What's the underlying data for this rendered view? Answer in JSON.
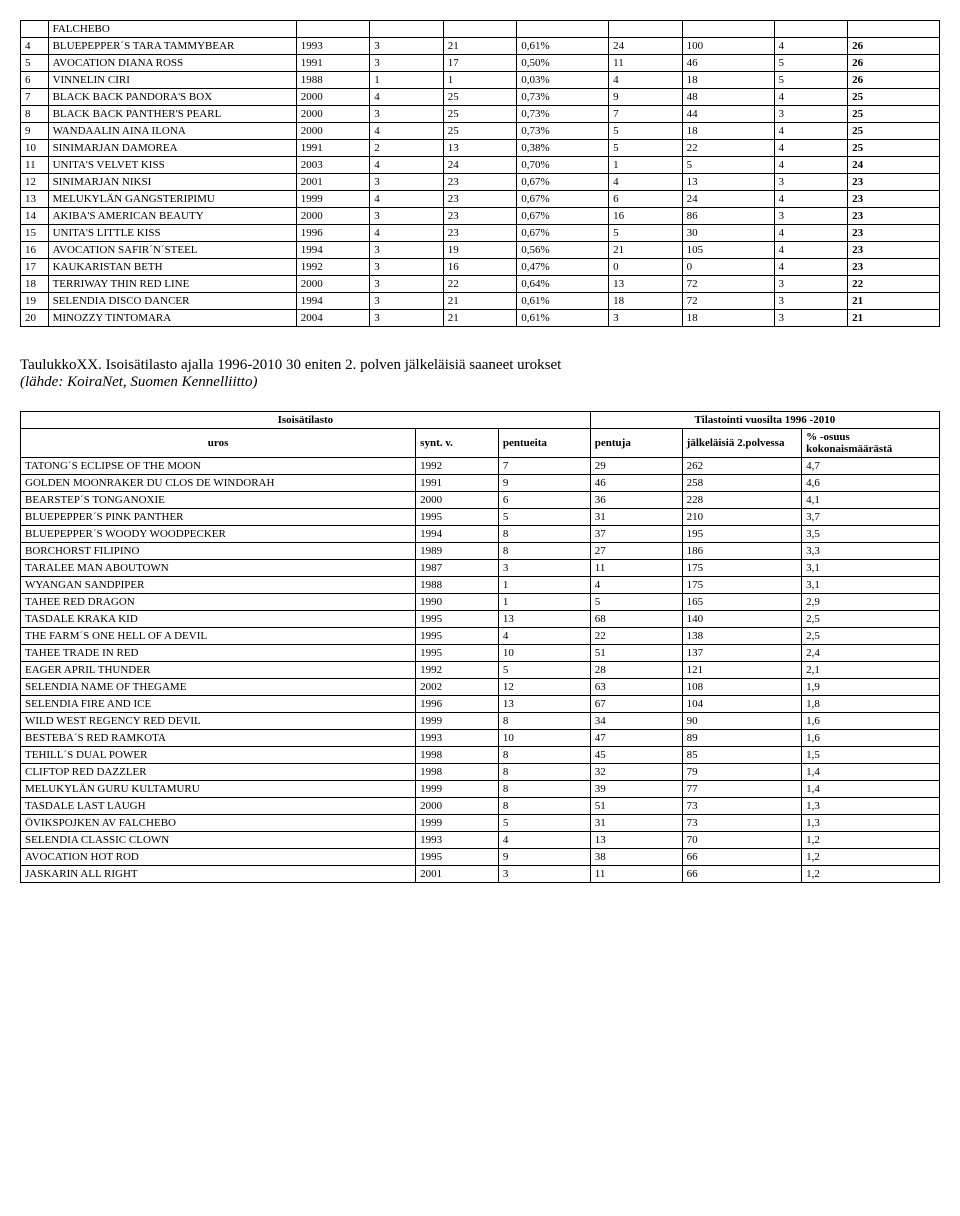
{
  "table1": {
    "rows": [
      {
        "n": "",
        "name": "FALCHEBO",
        "c1": "",
        "c2": "",
        "c3": "",
        "c4": "",
        "c5": "",
        "c6": "",
        "c7": "",
        "c8": ""
      },
      {
        "n": "4",
        "name": "BLUEPEPPER´S TARA TAMMYBEAR",
        "c1": "1993",
        "c2": "3",
        "c3": "21",
        "c4": "0,61%",
        "c5": "24",
        "c6": "100",
        "c7": "4",
        "c8": "26"
      },
      {
        "n": "5",
        "name": "AVOCATION DIANA ROSS",
        "c1": "1991",
        "c2": "3",
        "c3": "17",
        "c4": "0,50%",
        "c5": "11",
        "c6": "46",
        "c7": "5",
        "c8": "26"
      },
      {
        "n": "6",
        "name": "VINNELIN CIRI",
        "c1": "1988",
        "c2": "1",
        "c3": "1",
        "c4": "0,03%",
        "c5": "4",
        "c6": "18",
        "c7": "5",
        "c8": "26"
      },
      {
        "n": "7",
        "name": "BLACK BACK PANDORA'S BOX",
        "c1": "2000",
        "c2": "4",
        "c3": "25",
        "c4": "0,73%",
        "c5": "9",
        "c6": "48",
        "c7": "4",
        "c8": "25"
      },
      {
        "n": "8",
        "name": "BLACK BACK PANTHER'S PEARL",
        "c1": "2000",
        "c2": "3",
        "c3": "25",
        "c4": "0,73%",
        "c5": "7",
        "c6": "44",
        "c7": "3",
        "c8": "25"
      },
      {
        "n": "9",
        "name": "WANDAALIN AINA ILONA",
        "c1": "2000",
        "c2": "4",
        "c3": "25",
        "c4": "0,73%",
        "c5": "5",
        "c6": "18",
        "c7": "4",
        "c8": "25"
      },
      {
        "n": "10",
        "name": "SINIMARJAN DAMOREA",
        "c1": "1991",
        "c2": "2",
        "c3": "13",
        "c4": "0,38%",
        "c5": "5",
        "c6": "22",
        "c7": "4",
        "c8": "25"
      },
      {
        "n": "11",
        "name": "UNITA'S VELVET KISS",
        "c1": "2003",
        "c2": "4",
        "c3": "24",
        "c4": "0,70%",
        "c5": "1",
        "c6": "5",
        "c7": "4",
        "c8": "24"
      },
      {
        "n": "12",
        "name": "SINIMARJAN NIKSI",
        "c1": "2001",
        "c2": "3",
        "c3": "23",
        "c4": "0,67%",
        "c5": "4",
        "c6": "13",
        "c7": "3",
        "c8": "23"
      },
      {
        "n": "13",
        "name": "MELUKYLÄN GANGSTERIPIMU",
        "c1": "1999",
        "c2": "4",
        "c3": "23",
        "c4": "0,67%",
        "c5": "6",
        "c6": "24",
        "c7": "4",
        "c8": "23"
      },
      {
        "n": "14",
        "name": "AKIBA'S AMERICAN BEAUTY",
        "c1": "2000",
        "c2": "3",
        "c3": "23",
        "c4": "0,67%",
        "c5": "16",
        "c6": "86",
        "c7": "3",
        "c8": "23"
      },
      {
        "n": "15",
        "name": "UNITA'S LITTLE KISS",
        "c1": "1996",
        "c2": "4",
        "c3": "23",
        "c4": "0,67%",
        "c5": "5",
        "c6": "30",
        "c7": "4",
        "c8": "23"
      },
      {
        "n": "16",
        "name": "AVOCATION SAFIR´N´STEEL",
        "c1": "1994",
        "c2": "3",
        "c3": "19",
        "c4": "0,56%",
        "c5": "21",
        "c6": "105",
        "c7": "4",
        "c8": "23"
      },
      {
        "n": "17",
        "name": "KAUKARISTAN BETH",
        "c1": "1992",
        "c2": "3",
        "c3": "16",
        "c4": "0,47%",
        "c5": "0",
        "c6": "0",
        "c7": "4",
        "c8": "23"
      },
      {
        "n": "18",
        "name": "TERRIWAY THIN RED LINE",
        "c1": "2000",
        "c2": "3",
        "c3": "22",
        "c4": "0,64%",
        "c5": "13",
        "c6": "72",
        "c7": "3",
        "c8": "22"
      },
      {
        "n": "19",
        "name": "SELENDIA DISCO DANCER",
        "c1": "1994",
        "c2": "3",
        "c3": "21",
        "c4": "0,61%",
        "c5": "18",
        "c6": "72",
        "c7": "3",
        "c8": "21"
      },
      {
        "n": "20",
        "name": "MINOZZY TINTOMARA",
        "c1": "2004",
        "c2": "3",
        "c3": "21",
        "c4": "0,61%",
        "c5": "3",
        "c6": "18",
        "c7": "3",
        "c8": "21"
      }
    ]
  },
  "caption": {
    "line1": "TaulukkoXX. Isoisätilasto ajalla 1996-2010 30 eniten 2. polven jälkeläisiä saaneet urokset",
    "line2": "(lähde: KoiraNet, Suomen Kennelliitto)"
  },
  "table2": {
    "header_main_left": "Isoisätilasto",
    "header_main_right": "Tilastointi vuosilta 1996 -2010",
    "cols": [
      "uros",
      "synt. v.",
      "pentueita",
      "pentuja",
      "jälkeläisiä 2.polvessa",
      "% -osuus kokonaismäärästä"
    ],
    "rows": [
      {
        "name": "TATONG´S ECLIPSE OF THE MOON",
        "y": "1992",
        "p": "7",
        "pu": "29",
        "j": "262",
        "pc": "4,7"
      },
      {
        "name": "GOLDEN MOONRAKER DU CLOS DE WINDORAH",
        "y": "1991",
        "p": "9",
        "pu": "46",
        "j": "258",
        "pc": "4,6"
      },
      {
        "name": "BEARSTEP´S TONGANOXIE",
        "y": "2000",
        "p": "6",
        "pu": "36",
        "j": "228",
        "pc": "4,1"
      },
      {
        "name": "BLUEPEPPER´S PINK PANTHER",
        "y": "1995",
        "p": "5",
        "pu": "31",
        "j": "210",
        "pc": "3,7"
      },
      {
        "name": "BLUEPEPPER´S WOODY WOODPECKER",
        "y": "1994",
        "p": "8",
        "pu": "37",
        "j": "195",
        "pc": "3,5"
      },
      {
        "name": "BORCHORST FILIPINO",
        "y": "1989",
        "p": "8",
        "pu": "27",
        "j": "186",
        "pc": "3,3"
      },
      {
        "name": "TARALEE MAN ABOUTOWN",
        "y": "1987",
        "p": "3",
        "pu": "11",
        "j": "175",
        "pc": "3,1"
      },
      {
        "name": "WYANGAN SANDPIPER",
        "y": "1988",
        "p": "1",
        "pu": "4",
        "j": "175",
        "pc": "3,1"
      },
      {
        "name": "TAHEE RED DRAGON",
        "y": "1990",
        "p": "1",
        "pu": "5",
        "j": "165",
        "pc": "2,9"
      },
      {
        "name": "TASDALE KRAKA KID",
        "y": "1995",
        "p": "13",
        "pu": "68",
        "j": "140",
        "pc": "2,5"
      },
      {
        "name": "THE FARM´S ONE HELL OF A DEVIL",
        "y": "1995",
        "p": "4",
        "pu": "22",
        "j": "138",
        "pc": "2,5"
      },
      {
        "name": "TAHEE TRADE IN RED",
        "y": "1995",
        "p": "10",
        "pu": "51",
        "j": "137",
        "pc": "2,4"
      },
      {
        "name": "EAGER APRIL THUNDER",
        "y": "1992",
        "p": "5",
        "pu": "28",
        "j": "121",
        "pc": "2,1"
      },
      {
        "name": "SELENDIA NAME OF THEGAME",
        "y": "2002",
        "p": "12",
        "pu": "63",
        "j": "108",
        "pc": "1,9"
      },
      {
        "name": "SELENDIA FIRE AND ICE",
        "y": "1996",
        "p": "13",
        "pu": "67",
        "j": "104",
        "pc": "1,8"
      },
      {
        "name": "WILD WEST REGENCY RED DEVIL",
        "y": "1999",
        "p": "8",
        "pu": "34",
        "j": "90",
        "pc": "1,6"
      },
      {
        "name": "BESTEBA´S RED RAMKOTA",
        "y": "1993",
        "p": "10",
        "pu": "47",
        "j": "89",
        "pc": "1,6"
      },
      {
        "name": "TEHILL´S DUAL POWER",
        "y": "1998",
        "p": "8",
        "pu": "45",
        "j": "85",
        "pc": "1,5"
      },
      {
        "name": "CLIFTOP RED DAZZLER",
        "y": "1998",
        "p": "8",
        "pu": "32",
        "j": "79",
        "pc": "1,4"
      },
      {
        "name": "MELUKYLÄN GURU KULTAMURU",
        "y": "1999",
        "p": "8",
        "pu": "39",
        "j": "77",
        "pc": "1,4"
      },
      {
        "name": "TASDALE LAST LAUGH",
        "y": "2000",
        "p": "8",
        "pu": "51",
        "j": "73",
        "pc": "1,3"
      },
      {
        "name": "ÖVIKSPOJKEN AV FALCHEBO",
        "y": "1999",
        "p": "5",
        "pu": "31",
        "j": "73",
        "pc": "1,3"
      },
      {
        "name": "SELENDIA CLASSIC CLOWN",
        "y": "1993",
        "p": "4",
        "pu": "13",
        "j": "70",
        "pc": "1,2"
      },
      {
        "name": "AVOCATION HOT ROD",
        "y": "1995",
        "p": "9",
        "pu": "38",
        "j": "66",
        "pc": "1,2"
      },
      {
        "name": "JASKARIN ALL RIGHT",
        "y": "2001",
        "p": "3",
        "pu": "11",
        "j": "66",
        "pc": "1,2"
      }
    ]
  }
}
